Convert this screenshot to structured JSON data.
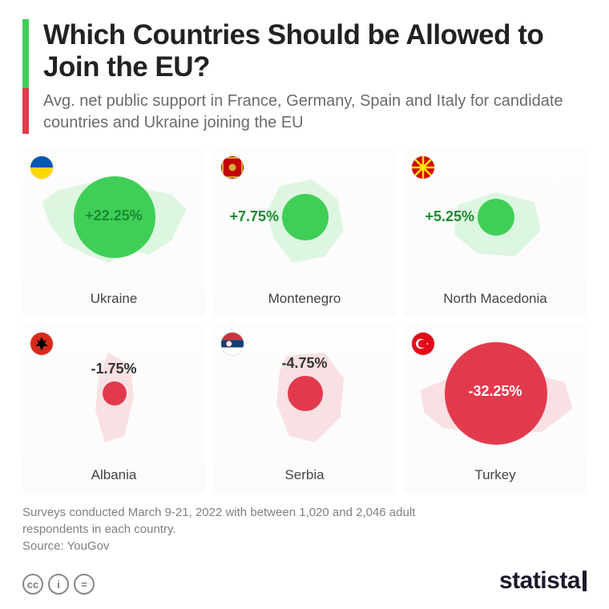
{
  "title": "Which Countries Should be Allowed to Join the EU?",
  "subtitle": "Avg. net public support in France, Germany, Spain and Italy for candidate countries and Ukraine joining the EU",
  "accent_positive": "#3fcf57",
  "accent_negative": "#e23a4d",
  "silhouette_positive": "#b9efc1",
  "silhouette_negative": "#f4c0c5",
  "background": "#ffffff",
  "type": "bubble-map-grid",
  "countries": [
    {
      "name": "Ukraine",
      "value": 22.25,
      "label": "+22.25%",
      "sign": "pos",
      "bubble_diameter": 102,
      "flag": "ukraine"
    },
    {
      "name": "Montenegro",
      "value": 7.75,
      "label": "+7.75%",
      "sign": "pos",
      "bubble_diameter": 58,
      "flag": "montenegro"
    },
    {
      "name": "North Macedonia",
      "value": 5.25,
      "label": "+5.25%",
      "sign": "pos",
      "bubble_diameter": 46,
      "flag": "north_macedonia"
    },
    {
      "name": "Albania",
      "value": -1.75,
      "label": "-1.75%",
      "sign": "neg",
      "bubble_diameter": 30,
      "flag": "albania"
    },
    {
      "name": "Serbia",
      "value": -4.75,
      "label": "-4.75%",
      "sign": "neg",
      "bubble_diameter": 44,
      "flag": "serbia"
    },
    {
      "name": "Turkey",
      "value": -32.25,
      "label": "-32.25%",
      "sign": "neg",
      "bubble_diameter": 128,
      "flag": "turkey"
    }
  ],
  "footer_note": "Surveys conducted March 9-21, 2022 with between 1,020 and 2,046 adult respondents in each country.",
  "source_line": "Source: YouGov",
  "brand": "statista",
  "cc_labels": [
    "cc",
    "i",
    "="
  ]
}
